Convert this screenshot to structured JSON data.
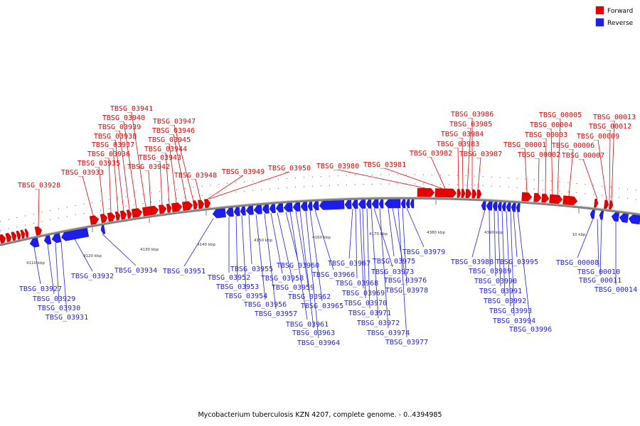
{
  "legend": {
    "forward_label": "Forward",
    "reverse_label": "Reverse"
  },
  "colors": {
    "forward": "#e60000",
    "reverse": "#1d1df0",
    "backbone": "#7a7a7a"
  },
  "caption": "Mycobacterium tuberculosis KZN 4207, complete genome. - 0..4394985",
  "ticks": [
    "4110 kbp",
    "4120 kbp",
    "4130 kbp",
    "4140 kbp",
    "4150 kbp",
    "4160 kbp",
    "4170 kbp",
    "4380 kbp",
    "4390 kbp",
    "10 kbp"
  ],
  "forward_genes": [
    "TBSG_03928",
    "TBSG_03933",
    "TBSG_03935",
    "TBSG_03936",
    "TBSG_03937",
    "TBSG_03938",
    "TBSG_03939",
    "TBSG_03940",
    "TBSG_03941",
    "TBSG_03942",
    "TBSG_03943",
    "TBSG_03944",
    "TBSG_03945",
    "TBSG_03946",
    "TBSG_03947",
    "TBSG_03948",
    "TBSG_03949",
    "TBSG_03950",
    "TBSG_03980",
    "TBSG_03981",
    "TBSG_03982",
    "TBSG_03983",
    "TBSG_03984",
    "TBSG_03985",
    "TBSG_03986",
    "TBSG_03987",
    "TBSG_00001",
    "TBSG_00002",
    "TBSG_00003",
    "TBSG_00004",
    "TBSG_00005",
    "TBSG_00006",
    "TBSG_00007",
    "TBSG_00009",
    "TBSG_00012",
    "TBSG_00013"
  ],
  "reverse_genes": [
    "TBSG_03927",
    "TBSG_03929",
    "TBSG_03930",
    "TBSG_03931",
    "TBSG_03932",
    "TBSG_03934",
    "TBSG_03951",
    "TBSG_03952",
    "TBSG_03953",
    "TBSG_03954",
    "TBSG_03955",
    "TBSG_03956",
    "TBSG_03957",
    "TBSG_03958",
    "TBSG_03959",
    "TBSG_03960",
    "TBSG_03961",
    "TBSG_03962",
    "TBSG_03963",
    "TBSG_03964",
    "TBSG_03965",
    "TBSG_03966",
    "TBSG_03967",
    "TBSG_03968",
    "TBSG_03969",
    "TBSG_03970",
    "TBSG_03971",
    "TBSG_03972",
    "TBSG_03973",
    "TBSG_03974",
    "TBSG_03975",
    "TBSG_03976",
    "TBSG_03977",
    "TBSG_03978",
    "TBSG_03979",
    "TBSG_03988",
    "TBSG_03989",
    "TBSG_03990",
    "TBSG_03991",
    "TBSG_03992",
    "TBSG_03993",
    "TBSG_03994",
    "TBSG_03995",
    "TBSG_03996",
    "TBSG_00008",
    "TBSG_00010",
    "TBSG_00011",
    "TBSG_00014"
  ]
}
